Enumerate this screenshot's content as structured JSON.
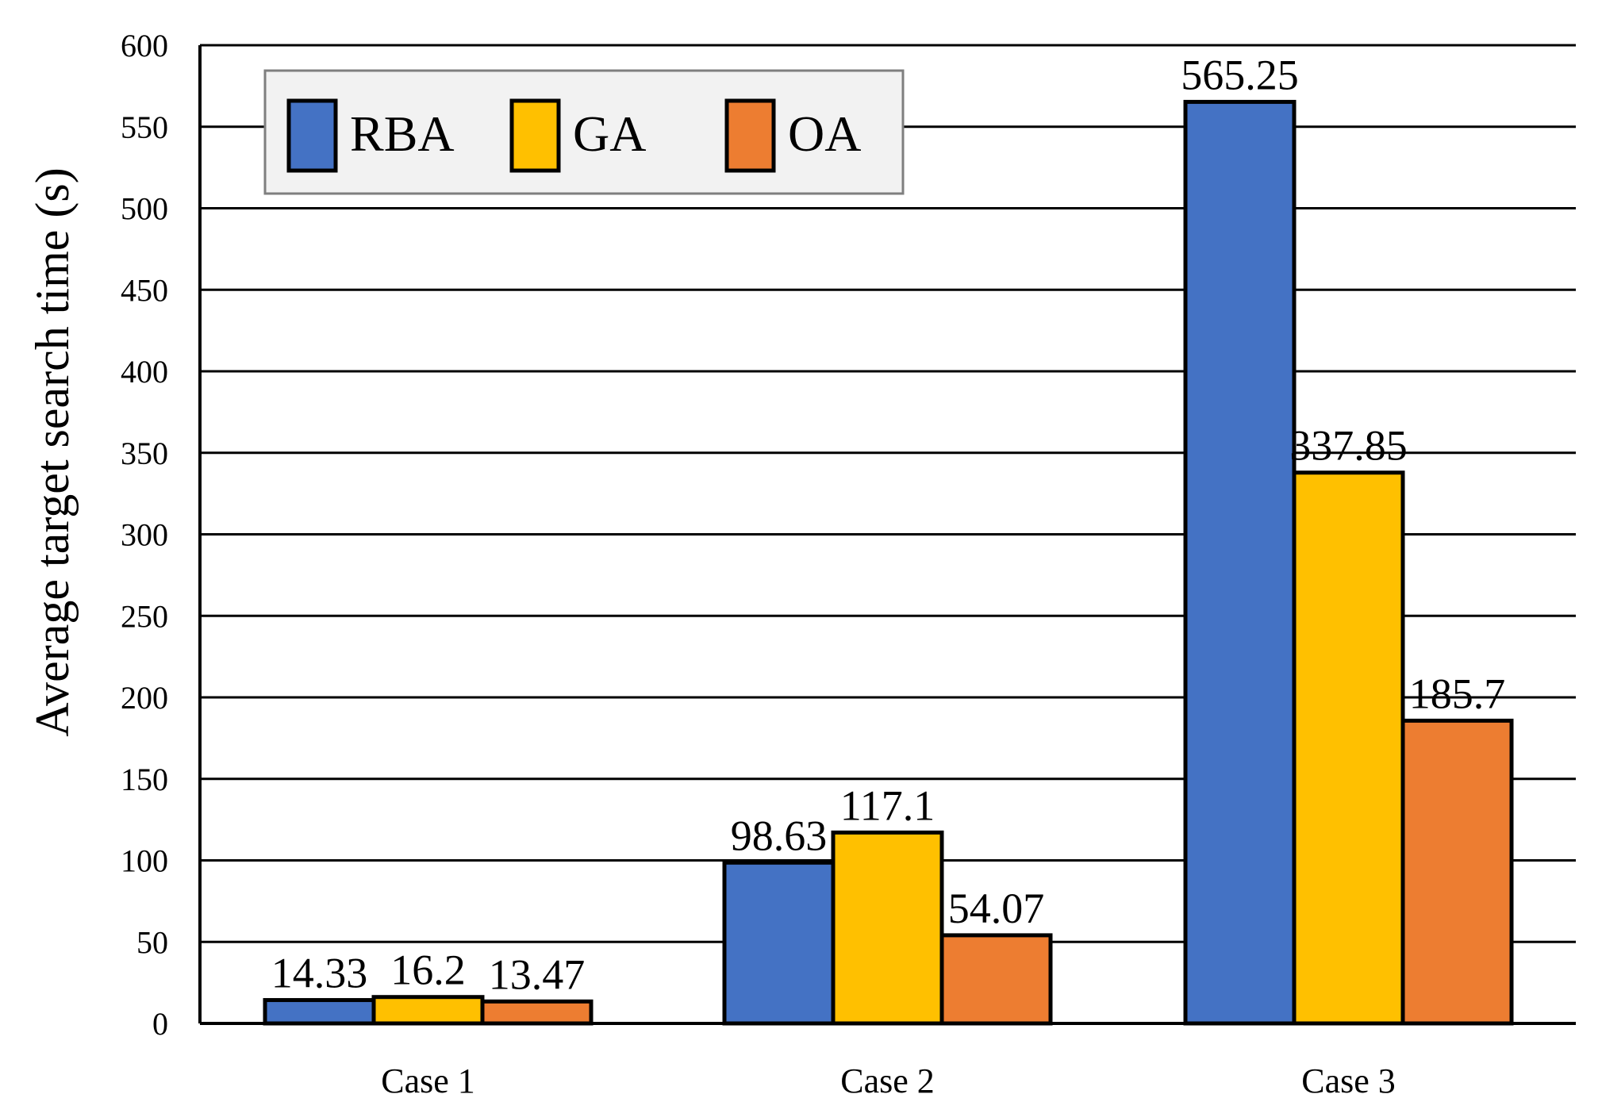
{
  "chart_data": {
    "type": "bar",
    "title": "",
    "xlabel": "",
    "ylabel": "Average  target  search time (s)",
    "categories": [
      "Case 1",
      "Case 2",
      "Case 3"
    ],
    "series": [
      {
        "name": "RBA",
        "color": "#4472C4",
        "values": [
          14.33,
          98.63,
          565.25
        ],
        "labels": [
          "14.33",
          "98.63",
          "565.25"
        ]
      },
      {
        "name": "GA",
        "color": "#FFC000",
        "values": [
          16.2,
          117.1,
          337.85
        ],
        "labels": [
          "16.2",
          "117.1",
          "337.85"
        ]
      },
      {
        "name": "OA",
        "color": "#ED7D31",
        "values": [
          13.47,
          54.07,
          185.7
        ],
        "labels": [
          "13.47",
          "54.07",
          "185.7"
        ]
      }
    ],
    "ylim": [
      0,
      600
    ],
    "yticks": [
      0,
      50,
      100,
      150,
      200,
      250,
      300,
      350,
      400,
      450,
      500,
      550,
      600
    ],
    "grid": true,
    "legend_position": "top-left"
  }
}
